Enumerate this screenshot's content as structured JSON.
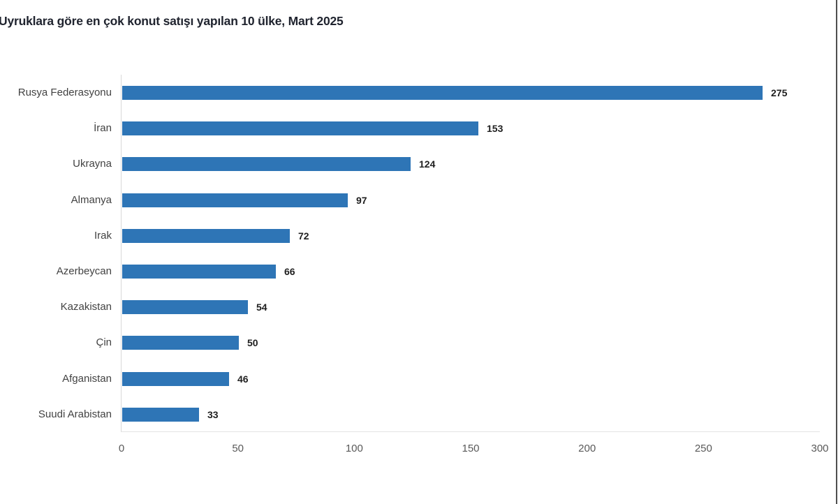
{
  "page": {
    "title": "Uyruklara göre en çok konut satışı yapılan 10 ülke, Mart 2025"
  },
  "chart_data": {
    "type": "bar",
    "orientation": "horizontal",
    "title": "Uyruklara göre en çok konut satışı yapılan 10 ülke, Mart 2025",
    "categories": [
      "Rusya Federasyonu",
      "İran",
      "Ukrayna",
      "Almanya",
      "Irak",
      "Azerbeycan",
      "Kazakistan",
      "Çin",
      "Afganistan",
      "Suudi Arabistan"
    ],
    "values": [
      275,
      153,
      124,
      97,
      72,
      66,
      54,
      50,
      46,
      33
    ],
    "value_labels": [
      "275",
      "153",
      "124",
      "97",
      "72",
      "66",
      "54",
      "50",
      "46",
      "33"
    ],
    "xlabel": "",
    "ylabel": "",
    "xlim": [
      0,
      300
    ],
    "x_ticks": [
      "0",
      "50",
      "100",
      "150",
      "200",
      "250",
      "300"
    ],
    "x_tick_values": [
      0,
      50,
      100,
      150,
      200,
      250,
      300
    ],
    "grid": false,
    "legend": false,
    "value_labels_shown": true
  },
  "colors": {
    "bar": "#2e75b6",
    "title_text": "#20242f",
    "category_text": "#424242",
    "value_text": "#1f1f1f",
    "tick_text": "#595959",
    "axis_line": "#d9d9d9",
    "frame_line": "#4f4f4f"
  }
}
